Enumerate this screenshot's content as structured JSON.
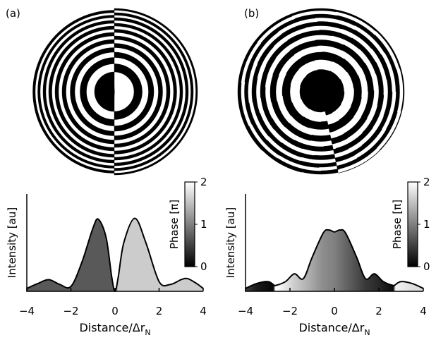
{
  "chart_data": [
    {
      "type": "area",
      "panel_label": "(a)",
      "ylabel": "Intensity [au]",
      "xlabel": "Distance/Δr",
      "xlabel_subscript": "N",
      "x": [
        -4,
        -3.5,
        -3,
        -2.5,
        -2,
        -1.5,
        -1,
        -0.75,
        -0.4,
        -0.15,
        0,
        0.15,
        0.4,
        0.9,
        1.4,
        2,
        2.5,
        3,
        3.3,
        3.7,
        4
      ],
      "values": [
        0.03,
        0.08,
        0.12,
        0.07,
        0.05,
        0.3,
        0.65,
        0.74,
        0.55,
        0.15,
        0,
        0.15,
        0.5,
        0.75,
        0.5,
        0.1,
        0.07,
        0.12,
        0.13,
        0.08,
        0.03
      ],
      "phase": [
        0.7,
        0.7,
        0.7,
        0.7,
        0.7,
        0.7,
        0.7,
        0.7,
        0.7,
        0.7,
        0.7,
        1.6,
        1.6,
        1.6,
        1.6,
        1.6,
        1.6,
        1.6,
        1.6,
        1.6,
        1.6
      ],
      "xlim": [
        -4,
        4
      ],
      "ylim": [
        0,
        1
      ],
      "xticks": [
        {
          "value": -4,
          "label": "−4"
        },
        {
          "value": -2,
          "label": "−2"
        },
        0,
        2,
        4
      ],
      "colorbar_label": "Phase [π]",
      "clim": [
        0,
        2
      ],
      "cticks": [
        0,
        1,
        2
      ]
    },
    {
      "type": "area",
      "panel_label": "(b)",
      "ylabel": "Intensity [au]",
      "xlabel": "Distance/Δr",
      "xlabel_subscript": "N",
      "x": [
        -4,
        -3.5,
        -3,
        -2.75,
        -2.65,
        -2.2,
        -1.8,
        -1.4,
        -1,
        -0.5,
        -0.25,
        0,
        0.25,
        0.5,
        1,
        1.4,
        1.8,
        2.2,
        2.65,
        2.75,
        3,
        3.5,
        4
      ],
      "values": [
        0.03,
        0.08,
        0.1,
        0.07,
        0.06,
        0.1,
        0.18,
        0.13,
        0.35,
        0.6,
        0.63,
        0.61,
        0.63,
        0.6,
        0.35,
        0.13,
        0.18,
        0.1,
        0.06,
        0.07,
        0.1,
        0.08,
        0.03
      ],
      "phase": [
        0.5,
        0.2,
        0.1,
        0.05,
        2,
        1.8,
        1.6,
        1.45,
        1.3,
        1.1,
        1.05,
        1,
        0.9,
        0.8,
        0.6,
        0.45,
        0.35,
        0.25,
        0.1,
        1.9,
        1.85,
        1.75,
        1.7
      ],
      "xlim": [
        -4,
        4
      ],
      "ylim": [
        0,
        1
      ],
      "xticks": [
        {
          "value": -4,
          "label": "−4"
        },
        {
          "value": -2,
          "label": "−2"
        },
        0,
        2,
        4
      ],
      "colorbar_label": "Phase [π]",
      "clim": [
        0,
        2
      ],
      "cticks": [
        0,
        1,
        2
      ]
    }
  ]
}
